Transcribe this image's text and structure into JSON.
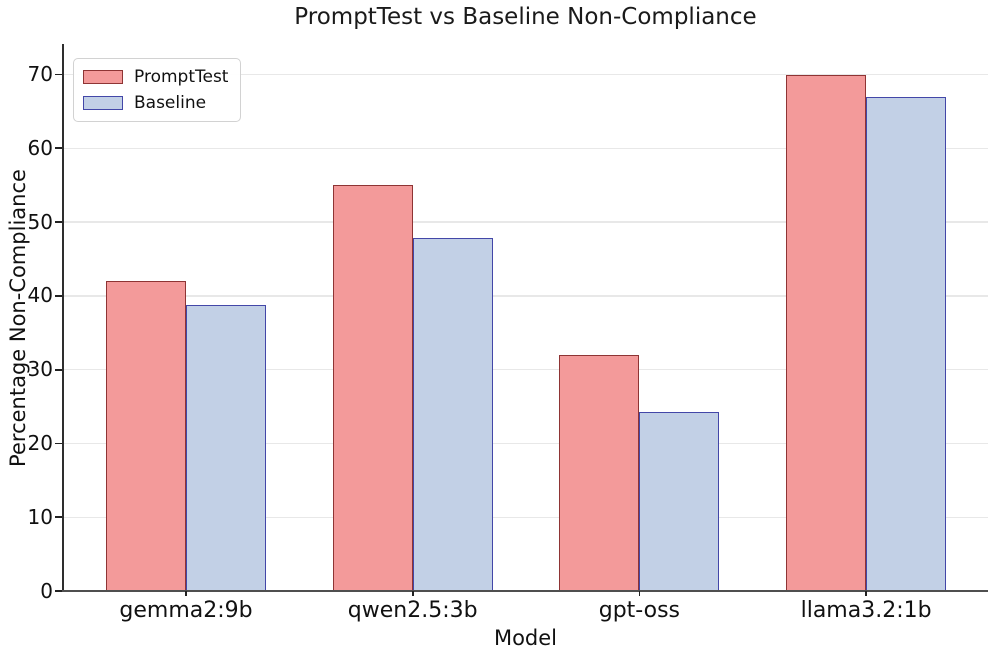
{
  "chart_data": {
    "type": "bar",
    "title": "PromptTest vs Baseline Non-Compliance",
    "xlabel": "Model",
    "ylabel": "Percentage Non-Compliance",
    "categories": [
      "gemma2:9b",
      "qwen2.5:3b",
      "gpt-oss",
      "llama3.2:1b"
    ],
    "series": [
      {
        "name": "PromptTest",
        "values": [
          42,
          55,
          32,
          70
        ],
        "fill": "#f39a9a",
        "edge": "#8e3434"
      },
      {
        "name": "Baseline",
        "values": [
          38.8,
          47.9,
          24.2,
          66.9
        ],
        "fill": "#c2d0e6",
        "edge": "#4347a8"
      }
    ],
    "ylim": [
      0,
      74
    ],
    "yticks": [
      0,
      10,
      20,
      30,
      40,
      50,
      60,
      70
    ],
    "grid": true,
    "legend_position": "upper left",
    "colors": {
      "grid": "#e8e8e8",
      "axis": "#2e2e2e",
      "background": "#ffffff",
      "text": "#111111"
    }
  }
}
